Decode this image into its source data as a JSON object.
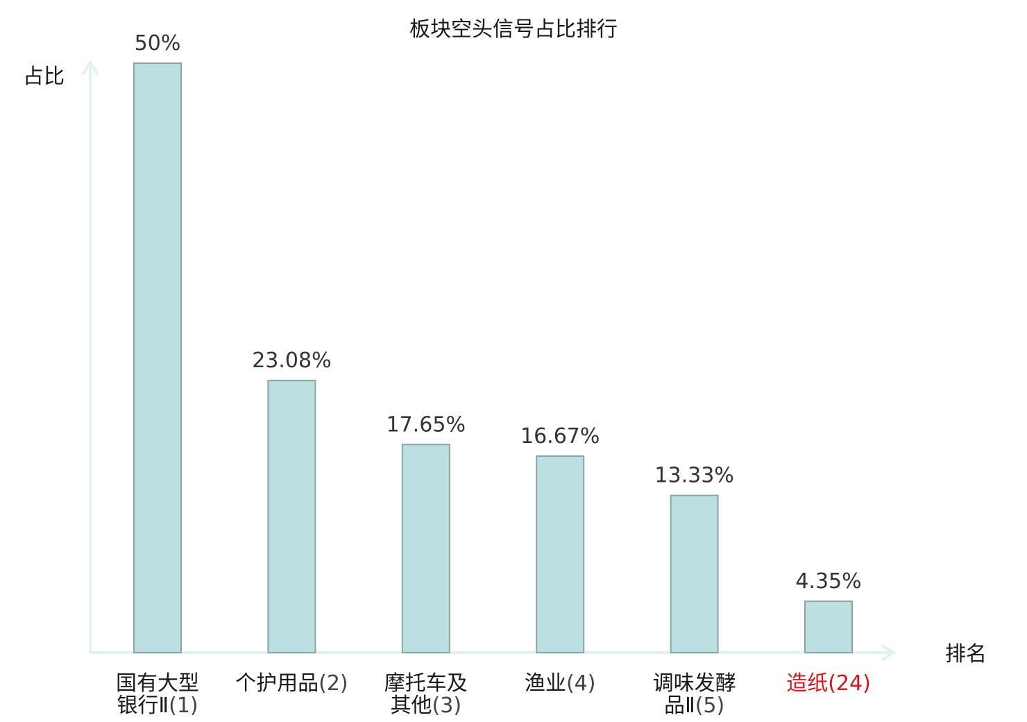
{
  "chart_data": {
    "type": "bar",
    "title": "板块空头信号占比排行",
    "ylabel": "占比",
    "xlabel": "排名",
    "value_suffix": "%",
    "ylim": [
      0,
      50
    ],
    "categories": [
      {
        "name_lines": [
          "国有大型",
          "银行Ⅱ"
        ],
        "rank": "(1)",
        "highlight": false
      },
      {
        "name_lines": [
          "个护用品"
        ],
        "rank": "(2)",
        "highlight": false
      },
      {
        "name_lines": [
          "摩托车及",
          "其他"
        ],
        "rank": "(3)",
        "highlight": false
      },
      {
        "name_lines": [
          "渔业"
        ],
        "rank": "(4)",
        "highlight": false
      },
      {
        "name_lines": [
          "调味发酵",
          "品Ⅱ"
        ],
        "rank": "(5)",
        "highlight": false
      },
      {
        "name_lines": [
          "造纸"
        ],
        "rank": "(24)",
        "highlight": true
      }
    ],
    "values": [
      50,
      23.08,
      17.65,
      16.67,
      13.33,
      4.35
    ],
    "value_labels": [
      "50%",
      "23.08%",
      "17.65%",
      "16.67%",
      "13.33%",
      "4.35%"
    ],
    "grid": false,
    "colors": {
      "bar_fill": "#bce0e2",
      "bar_stroke": "#8aa4a6",
      "axis": "#e2f3f0",
      "highlight_label": "#d9141b"
    }
  }
}
